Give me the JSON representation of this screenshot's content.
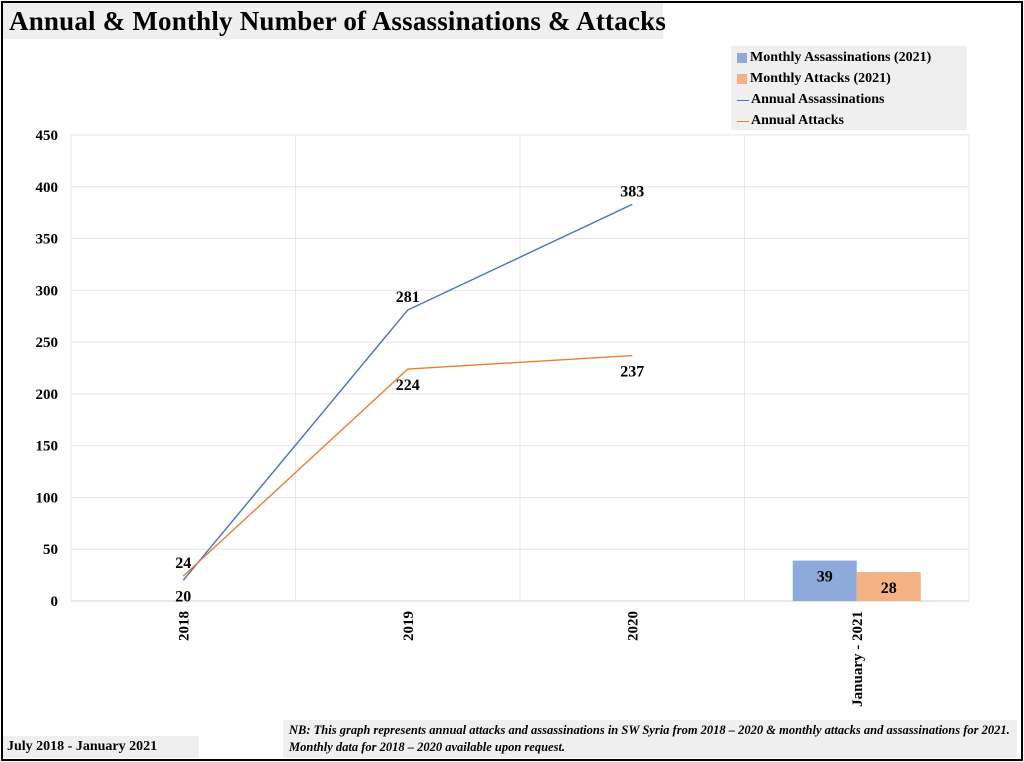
{
  "chart_data": {
    "type": "line",
    "title": "Annual & Monthly Number of Assassinations & Attacks",
    "categories": [
      "2018",
      "2019",
      "2020",
      "January - 2021"
    ],
    "ylim": [
      0,
      450
    ],
    "yticks": [
      0,
      50,
      100,
      150,
      200,
      250,
      300,
      350,
      400,
      450
    ],
    "grid": true,
    "legend_position": "top-right",
    "series": [
      {
        "name": "Monthly Assassinations (2021)",
        "kind": "bar",
        "color": "#8eaadb",
        "values": [
          null,
          null,
          null,
          39
        ]
      },
      {
        "name": "Monthly Attacks (2021)",
        "kind": "bar",
        "color": "#f4b183",
        "values": [
          null,
          null,
          null,
          28
        ]
      },
      {
        "name": "Annual Assassinations",
        "kind": "line",
        "color": "#4472c4",
        "values": [
          20,
          281,
          383,
          null
        ]
      },
      {
        "name": "Annual Attacks",
        "kind": "line",
        "color": "#ed7d31",
        "values": [
          24,
          224,
          237,
          null
        ]
      }
    ]
  },
  "footer": {
    "date_range": "July 2018 - January 2021",
    "note": "NB: This graph represents annual attacks and assassinations in SW Syria from 2018 – 2020 & monthly attacks and assassinations for 2021. Monthly data for 2018 – 2020 available upon request."
  }
}
